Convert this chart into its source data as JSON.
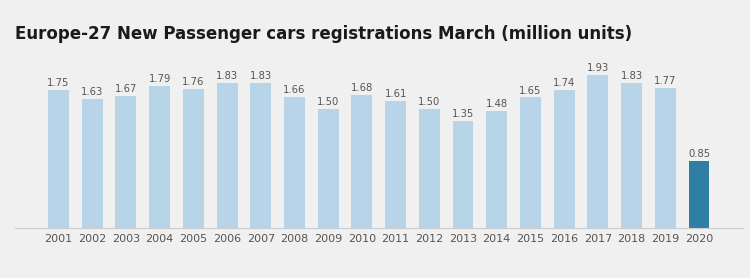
{
  "title": "Europe-27 New Passenger cars registrations March (million units)",
  "years": [
    2001,
    2002,
    2003,
    2004,
    2005,
    2006,
    2007,
    2008,
    2009,
    2010,
    2011,
    2012,
    2013,
    2014,
    2015,
    2016,
    2017,
    2018,
    2019,
    2020
  ],
  "values": [
    1.75,
    1.63,
    1.67,
    1.79,
    1.76,
    1.83,
    1.83,
    1.66,
    1.5,
    1.68,
    1.61,
    1.5,
    1.35,
    1.48,
    1.65,
    1.74,
    1.93,
    1.83,
    1.77,
    0.85
  ],
  "bar_colors": [
    "#b8d4e8",
    "#b8d4e8",
    "#b8d4e8",
    "#b8d4e8",
    "#b8d4e8",
    "#b8d4e8",
    "#b8d4e8",
    "#b8d4e8",
    "#b8d4e8",
    "#b8d4e8",
    "#b8d4e8",
    "#b8d4e8",
    "#b8d4e8",
    "#b8d4e8",
    "#b8d4e8",
    "#b8d4e8",
    "#b8d4e8",
    "#b8d4e8",
    "#b8d4e8",
    "#2e7fa3"
  ],
  "background_color": "#f0f0f0",
  "title_fontsize": 12,
  "label_fontsize": 7.2,
  "tick_fontsize": 8,
  "ylim": [
    0,
    2.25
  ],
  "fig_width": 7.5,
  "fig_height": 2.78
}
